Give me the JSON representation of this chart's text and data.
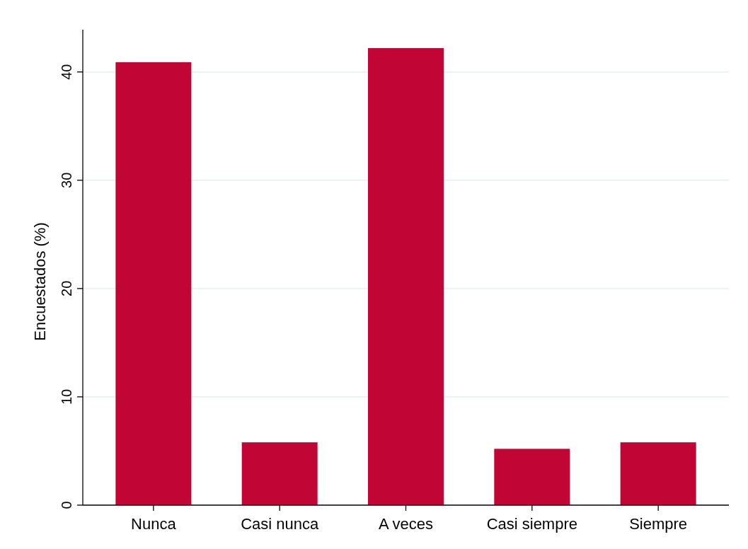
{
  "chart_data": {
    "type": "bar",
    "ylabel": "Encuestados (%)",
    "categories": [
      "Nunca",
      "Casi nunca",
      "A veces",
      "Casi siempre",
      "Siempre"
    ],
    "values": [
      40.9,
      5.8,
      42.2,
      5.2,
      5.8
    ],
    "color": "#c10534",
    "ylim": [
      0,
      43.9
    ],
    "yticks": [
      0,
      10,
      20,
      30,
      40
    ],
    "grid": "y"
  }
}
